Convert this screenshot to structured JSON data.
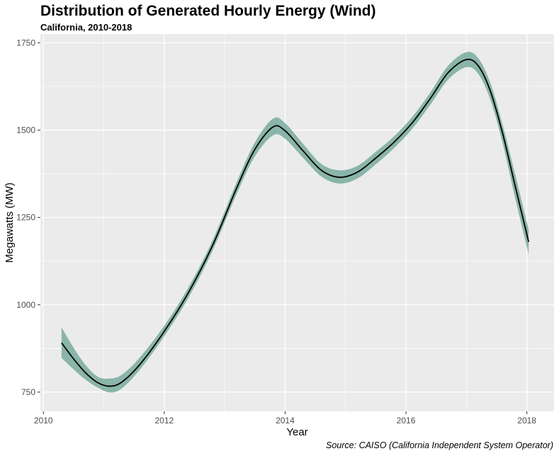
{
  "chart_data": {
    "type": "line",
    "title": "Distribution of Generated Hourly Energy (Wind)",
    "subtitle": "California, 2010-2018",
    "caption": "Source: CAISO (California Independent System Operator)",
    "xlabel": "Year",
    "ylabel": "Megawatts (MW)",
    "xlim": [
      2009.95,
      2018.45
    ],
    "ylim": [
      695,
      1775
    ],
    "xticks": [
      2010,
      2012,
      2014,
      2016,
      2018
    ],
    "yticks": [
      750,
      1000,
      1250,
      1500,
      1750
    ],
    "grid": true,
    "colors": {
      "panel": "#ebebeb",
      "grid": "#ffffff",
      "ribbon": "#8ab5a9",
      "line": "#000000"
    },
    "series": [
      {
        "type": "smooth",
        "x": [
          2010.3,
          2010.5,
          2010.7,
          2010.9,
          2011.1,
          2011.3,
          2011.6,
          2012.0,
          2012.4,
          2012.8,
          2013.2,
          2013.5,
          2013.8,
          2014.0,
          2014.3,
          2014.6,
          2014.9,
          2015.2,
          2015.5,
          2015.8,
          2016.1,
          2016.4,
          2016.7,
          2017.0,
          2017.2,
          2017.4,
          2017.6,
          2017.8,
          2018.03
        ],
        "y": [
          891,
          845,
          805,
          777,
          767,
          779,
          830,
          924,
          1035,
          1170,
          1335,
          1445,
          1509,
          1498,
          1440,
          1385,
          1365,
          1380,
          1420,
          1465,
          1520,
          1590,
          1665,
          1702,
          1683,
          1610,
          1490,
          1345,
          1180
        ],
        "lower": [
          848,
          815,
          785,
          763,
          749,
          761,
          815,
          910,
          1020,
          1155,
          1318,
          1425,
          1485,
          1475,
          1420,
          1367,
          1347,
          1362,
          1402,
          1448,
          1503,
          1572,
          1645,
          1680,
          1660,
          1585,
          1462,
          1310,
          1145
        ],
        "upper": [
          935,
          877,
          827,
          794,
          789,
          800,
          850,
          940,
          1050,
          1185,
          1352,
          1465,
          1533,
          1520,
          1460,
          1403,
          1385,
          1398,
          1438,
          1482,
          1537,
          1607,
          1685,
          1723,
          1705,
          1633,
          1515,
          1378,
          1215
        ]
      }
    ]
  }
}
